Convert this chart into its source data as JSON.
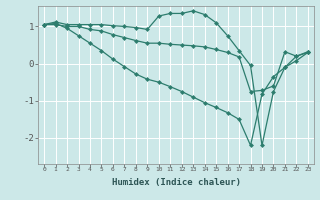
{
  "xlabel": "Humidex (Indice chaleur)",
  "ylabel": "",
  "background_color": "#cce8e8",
  "grid_color": "#ffffff",
  "line_color": "#2d7d6e",
  "xlim": [
    -0.5,
    23.5
  ],
  "ylim": [
    -2.7,
    1.55
  ],
  "line1_x": [
    0,
    1,
    2,
    3,
    4,
    5,
    6,
    7,
    8,
    9,
    10,
    11,
    12,
    13,
    14,
    15,
    16,
    17,
    18,
    19,
    20,
    21,
    22,
    23
  ],
  "line1_y": [
    1.05,
    1.12,
    1.05,
    1.05,
    1.05,
    1.05,
    1.02,
    1.0,
    0.97,
    0.92,
    1.28,
    1.35,
    1.35,
    1.42,
    1.32,
    1.1,
    0.75,
    0.35,
    -0.05,
    -2.2,
    -0.75,
    -0.1,
    0.2,
    0.32
  ],
  "line2_x": [
    0,
    1,
    2,
    3,
    4,
    5,
    6,
    7,
    8,
    9,
    10,
    11,
    12,
    13,
    14,
    15,
    16,
    17,
    18,
    19,
    20,
    21,
    22,
    23
  ],
  "line2_y": [
    1.05,
    1.05,
    1.0,
    1.0,
    0.92,
    0.88,
    0.78,
    0.7,
    0.62,
    0.55,
    0.55,
    0.52,
    0.5,
    0.48,
    0.45,
    0.38,
    0.3,
    0.18,
    -0.75,
    -0.72,
    -0.6,
    0.32,
    0.2,
    0.3
  ],
  "line3_x": [
    0,
    1,
    2,
    3,
    4,
    5,
    6,
    7,
    8,
    9,
    10,
    11,
    12,
    13,
    14,
    15,
    16,
    17,
    18,
    19,
    20,
    21,
    22,
    23
  ],
  "line3_y": [
    1.05,
    1.08,
    0.95,
    0.75,
    0.55,
    0.35,
    0.12,
    -0.08,
    -0.28,
    -0.42,
    -0.5,
    -0.62,
    -0.75,
    -0.9,
    -1.05,
    -1.18,
    -1.32,
    -1.5,
    -2.2,
    -0.82,
    -0.35,
    -0.1,
    0.08,
    0.3
  ],
  "xtick_labels": [
    "0",
    "1",
    "2",
    "3",
    "4",
    "5",
    "6",
    "7",
    "8",
    "9",
    "10",
    "11",
    "12",
    "13",
    "14",
    "15",
    "16",
    "17",
    "18",
    "19",
    "20",
    "21",
    "22",
    "23"
  ],
  "yticks": [
    -2,
    -1,
    0,
    1
  ],
  "markersize": 2.5,
  "linewidth": 0.9
}
